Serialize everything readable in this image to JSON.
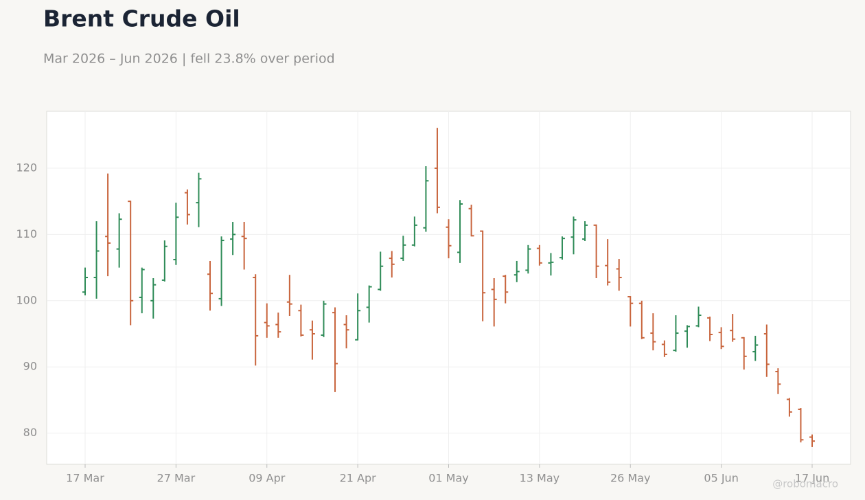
{
  "chart_data": {
    "type": "ohlc",
    "title": "Brent Crude Oil",
    "subtitle": "Mar 2026 – Jun 2026 | fell 23.8% over period",
    "watermark": "@robomacro",
    "up_color": "#2e8b57",
    "down_color": "#c8643c",
    "grid": true,
    "ylim": [
      75.3,
      128.6
    ],
    "yticks": [
      80,
      90,
      100,
      110,
      120
    ],
    "categories": [
      "17 Mar",
      null,
      null,
      null,
      null,
      null,
      null,
      null,
      "27 Mar",
      null,
      null,
      null,
      null,
      null,
      null,
      null,
      "09 Apr",
      null,
      null,
      null,
      null,
      null,
      null,
      null,
      "21 Apr",
      null,
      null,
      null,
      null,
      null,
      null,
      null,
      "01 May",
      null,
      null,
      null,
      null,
      null,
      null,
      null,
      "13 May",
      null,
      null,
      null,
      null,
      null,
      null,
      null,
      "26 May",
      null,
      null,
      null,
      null,
      null,
      null,
      null,
      "05 Jun",
      null,
      null,
      null,
      null,
      null,
      null,
      null,
      "17 Jun"
    ],
    "open": [
      101.3,
      103.5,
      109.7,
      107.8,
      115.0,
      100.5,
      100.0,
      103.1,
      106.2,
      116.3,
      114.8,
      104.0,
      100.3,
      109.3,
      109.7,
      103.5,
      96.7,
      96.4,
      99.8,
      98.5,
      95.6,
      94.8,
      98.2,
      96.4,
      94.1,
      99.0,
      101.7,
      106.4,
      106.4,
      108.4,
      111.0,
      120.0,
      111.1,
      107.3,
      113.9,
      110.5,
      101.7,
      103.7,
      103.9,
      104.6,
      107.9,
      105.7,
      106.5,
      109.6,
      109.3,
      111.4,
      105.3,
      104.8,
      100.6,
      99.6,
      95.1,
      93.4,
      92.5,
      95.4,
      96.2,
      97.4,
      95.2,
      95.5,
      94.4,
      92.3,
      95.0,
      89.3,
      85.1,
      83.6,
      79.4
    ],
    "high": [
      105.0,
      112.0,
      119.2,
      113.2,
      115.1,
      105.0,
      103.4,
      109.1,
      114.8,
      116.8,
      119.3,
      106.0,
      109.7,
      111.9,
      111.9,
      104.0,
      99.6,
      98.2,
      103.9,
      99.4,
      97.0,
      100.0,
      99.0,
      97.8,
      101.1,
      102.3,
      107.4,
      107.5,
      109.8,
      112.7,
      120.3,
      126.1,
      112.3,
      115.2,
      114.5,
      110.6,
      103.4,
      103.9,
      106.0,
      108.4,
      108.4,
      107.2,
      109.7,
      112.7,
      112.0,
      111.5,
      109.3,
      106.3,
      100.7,
      100.0,
      98.1,
      94.0,
      97.8,
      96.3,
      99.1,
      97.6,
      96.0,
      98.0,
      94.5,
      94.7,
      96.4,
      89.8,
      85.3,
      83.8,
      79.8
    ],
    "low": [
      100.8,
      100.3,
      103.7,
      105.0,
      96.3,
      98.1,
      97.3,
      102.9,
      105.4,
      111.5,
      111.1,
      98.5,
      99.2,
      106.9,
      104.7,
      90.2,
      94.4,
      94.4,
      97.7,
      94.6,
      91.1,
      94.5,
      86.2,
      92.8,
      94.0,
      96.7,
      101.5,
      103.5,
      106.0,
      108.2,
      110.4,
      113.2,
      106.4,
      105.7,
      109.7,
      96.9,
      96.1,
      99.6,
      102.8,
      104.1,
      105.3,
      103.8,
      106.2,
      107.0,
      109.0,
      103.4,
      102.3,
      101.5,
      96.1,
      94.2,
      92.5,
      91.5,
      92.3,
      92.9,
      96.0,
      93.9,
      92.7,
      93.8,
      89.6,
      90.9,
      88.5,
      85.9,
      82.5,
      78.6,
      77.9
    ],
    "close": [
      103.5,
      107.5,
      108.7,
      112.3,
      100.0,
      104.7,
      102.4,
      108.2,
      112.6,
      113.0,
      118.4,
      101.1,
      109.1,
      110.0,
      109.4,
      94.7,
      96.2,
      95.3,
      99.5,
      94.8,
      95.0,
      99.5,
      90.5,
      95.6,
      98.5,
      102.1,
      105.2,
      105.5,
      108.4,
      111.4,
      118.1,
      114.1,
      108.3,
      114.6,
      109.8,
      101.2,
      100.2,
      101.3,
      104.4,
      107.8,
      105.7,
      105.8,
      109.4,
      112.2,
      111.4,
      105.2,
      102.8,
      103.5,
      99.6,
      94.4,
      93.8,
      91.9,
      95.1,
      96.1,
      97.8,
      94.9,
      93.1,
      94.2,
      91.6,
      93.3,
      90.4,
      87.4,
      83.2,
      79.0,
      78.8
    ]
  }
}
